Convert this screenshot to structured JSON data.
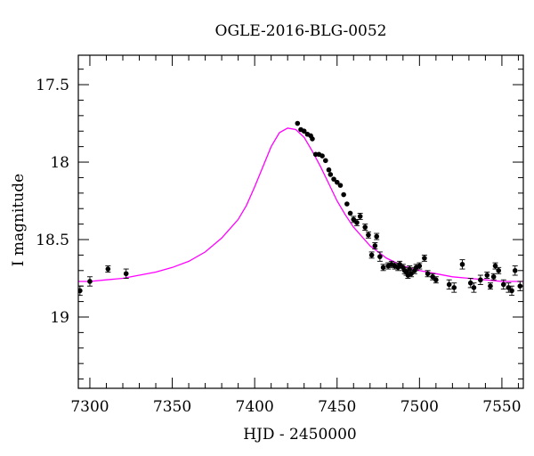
{
  "chart_data": {
    "type": "scatter",
    "title": "OGLE-2016-BLG-0052",
    "xlabel": "HJD - 2450000",
    "ylabel": "I magnitude",
    "xlim": [
      7293,
      7563
    ],
    "ylim": [
      19.46,
      17.31
    ],
    "y_inverted": true,
    "x_ticks": [
      7300,
      7350,
      7400,
      7450,
      7500,
      7550
    ],
    "x_tick_labels": [
      "7300",
      "7350",
      "7400",
      "7450",
      "7500",
      "7550"
    ],
    "y_ticks": [
      17.5,
      18,
      18.5,
      19
    ],
    "y_tick_labels": [
      "17.5",
      "18",
      "18.5",
      "19"
    ],
    "grid": false,
    "colors": {
      "points": "#000000",
      "model": "#ff00ff",
      "frame": "#000000"
    },
    "model": {
      "name": "",
      "x": [
        7293,
        7300,
        7310,
        7320,
        7330,
        7340,
        7350,
        7360,
        7370,
        7380,
        7390,
        7395,
        7400,
        7405,
        7410,
        7415,
        7420,
        7425,
        7430,
        7435,
        7440,
        7445,
        7450,
        7455,
        7460,
        7465,
        7470,
        7475,
        7480,
        7490,
        7500,
        7510,
        7520,
        7530,
        7540,
        7550,
        7563
      ],
      "y": [
        18.77,
        18.77,
        18.76,
        18.75,
        18.73,
        18.71,
        18.68,
        18.64,
        18.58,
        18.49,
        18.37,
        18.28,
        18.16,
        18.03,
        17.9,
        17.81,
        17.78,
        17.79,
        17.84,
        17.93,
        18.03,
        18.14,
        18.25,
        18.34,
        18.42,
        18.48,
        18.54,
        18.58,
        18.62,
        18.67,
        18.7,
        18.72,
        18.74,
        18.75,
        18.76,
        18.77,
        18.77
      ]
    },
    "series": [
      {
        "name": "",
        "x": [
          7294,
          7300,
          7311,
          7322,
          7426,
          7428,
          7430,
          7432,
          7434,
          7435,
          7437,
          7439,
          7441,
          7443,
          7445,
          7446,
          7448,
          7450,
          7452,
          7454,
          7456,
          7458,
          7460,
          7462,
          7464,
          7467,
          7469,
          7471,
          7473,
          7474,
          7476,
          7478,
          7481,
          7483,
          7485,
          7487,
          7488,
          7490,
          7491,
          7492,
          7493,
          7494,
          7495,
          7497,
          7498,
          7500,
          7503,
          7505,
          7508,
          7510,
          7518,
          7521,
          7526,
          7531,
          7533,
          7537,
          7541,
          7543,
          7545,
          7546,
          7548,
          7551,
          7554,
          7556,
          7558,
          7561
        ],
        "y": [
          18.83,
          18.77,
          18.69,
          18.72,
          17.75,
          17.79,
          17.8,
          17.82,
          17.83,
          17.85,
          17.95,
          17.95,
          17.96,
          17.99,
          18.05,
          18.08,
          18.11,
          18.13,
          18.15,
          18.21,
          18.27,
          18.33,
          18.37,
          18.39,
          18.35,
          18.42,
          18.47,
          18.6,
          18.54,
          18.48,
          18.61,
          18.68,
          18.67,
          18.66,
          18.67,
          18.68,
          18.66,
          18.68,
          18.7,
          18.71,
          18.73,
          18.69,
          18.72,
          18.7,
          18.68,
          18.67,
          18.62,
          18.72,
          18.74,
          18.76,
          18.79,
          18.81,
          18.66,
          18.78,
          18.81,
          18.76,
          18.73,
          18.8,
          18.74,
          18.67,
          18.7,
          18.79,
          18.81,
          18.83,
          18.7,
          18.8
        ],
        "yerr": [
          0.03,
          0.03,
          0.02,
          0.03,
          0.01,
          0.01,
          0.01,
          0.01,
          0.01,
          0.01,
          0.01,
          0.01,
          0.01,
          0.01,
          0.01,
          0.01,
          0.01,
          0.01,
          0.01,
          0.01,
          0.01,
          0.01,
          0.02,
          0.02,
          0.02,
          0.02,
          0.02,
          0.02,
          0.02,
          0.02,
          0.03,
          0.02,
          0.02,
          0.02,
          0.02,
          0.02,
          0.02,
          0.02,
          0.02,
          0.02,
          0.02,
          0.02,
          0.02,
          0.02,
          0.02,
          0.02,
          0.02,
          0.02,
          0.02,
          0.02,
          0.03,
          0.03,
          0.03,
          0.03,
          0.03,
          0.03,
          0.02,
          0.02,
          0.02,
          0.02,
          0.02,
          0.03,
          0.03,
          0.03,
          0.03,
          0.03
        ]
      }
    ]
  }
}
